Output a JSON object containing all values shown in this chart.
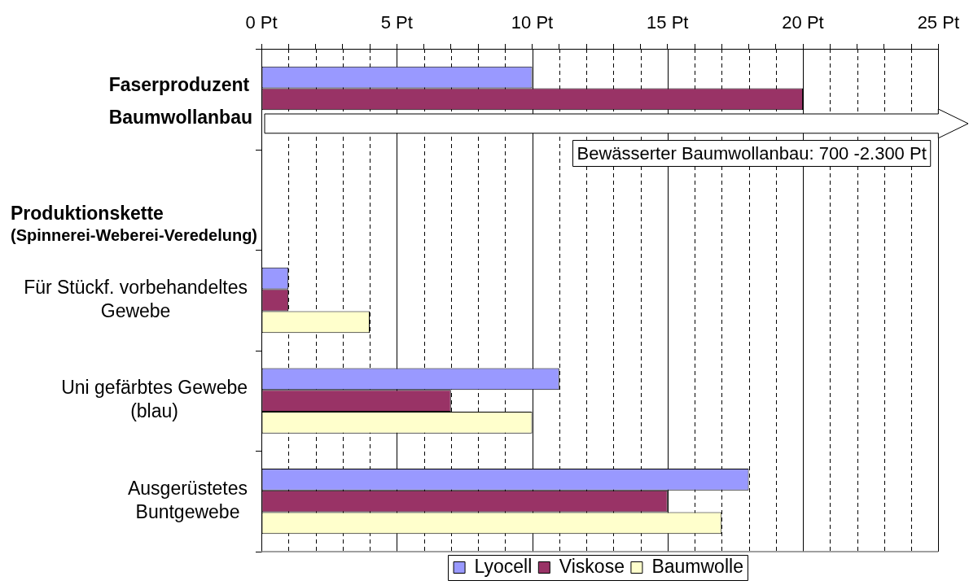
{
  "chart_data": {
    "type": "bar",
    "orientation": "horizontal",
    "categories": [
      "Faserproduzent\nBaumwollanbau",
      "Produktionskette\n(Spinnerei-Weberei-Veredelung)",
      "Für Stückf. vorbehandeltes\nGewebe",
      "Uni gefärbtes Gewebe\n(blau)",
      "Ausgerüstetes\nBuntgewebe"
    ],
    "series": [
      {
        "name": "Lyocell",
        "color": "#9999ff",
        "values": [
          10,
          null,
          1,
          11,
          18
        ]
      },
      {
        "name": "Viskose",
        "color": "#993366",
        "values": [
          20,
          null,
          1,
          7,
          15
        ]
      },
      {
        "name": "Baumwolle",
        "color": "#ffffcc",
        "values": [
          null,
          null,
          4,
          10,
          17
        ]
      }
    ],
    "xlim": [
      0,
      25
    ],
    "xticks": [
      {
        "value": 0,
        "label": "0 Pt"
      },
      {
        "value": 1,
        "label": null
      },
      {
        "value": 2,
        "label": null
      },
      {
        "value": 3,
        "label": null
      },
      {
        "value": 4,
        "label": null
      },
      {
        "value": 5,
        "label": "5 Pt"
      },
      {
        "value": 6,
        "label": null
      },
      {
        "value": 7,
        "label": null
      },
      {
        "value": 8,
        "label": null
      },
      {
        "value": 9,
        "label": null
      },
      {
        "value": 10,
        "label": "10 Pt"
      },
      {
        "value": 11,
        "label": null
      },
      {
        "value": 12,
        "label": null
      },
      {
        "value": 13,
        "label": null
      },
      {
        "value": 14,
        "label": null
      },
      {
        "value": 15,
        "label": "15 Pt"
      },
      {
        "value": 16,
        "label": null
      },
      {
        "value": 17,
        "label": null
      },
      {
        "value": 18,
        "label": null
      },
      {
        "value": 19,
        "label": null
      },
      {
        "value": 20,
        "label": "20 Pt"
      },
      {
        "value": 21,
        "label": null
      },
      {
        "value": 22,
        "label": null
      },
      {
        "value": 23,
        "label": null
      },
      {
        "value": 24,
        "label": null
      },
      {
        "value": 25,
        "label": "25 Pt"
      }
    ],
    "grid": "x",
    "legend": "bottom",
    "annotations": [
      "Bewässerter Baumwollanbau: 700 -2.300 Pt"
    ]
  }
}
